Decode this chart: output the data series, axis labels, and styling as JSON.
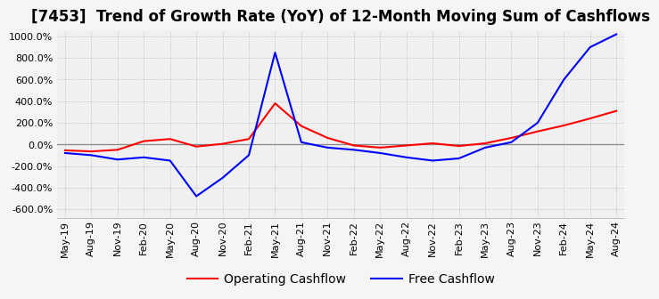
{
  "title": "[7453]  Trend of Growth Rate (YoY) of 12-Month Moving Sum of Cashflows",
  "ylim": [
    -680,
    1050
  ],
  "yticks": [
    -600,
    -400,
    -200,
    0,
    200,
    400,
    600,
    800,
    1000
  ],
  "ytick_labels": [
    "-600.0%",
    "-400.0%",
    "-200.0%",
    "0.0%",
    "200.0%",
    "400.0%",
    "600.0%",
    "800.0%",
    "1000.0%"
  ],
  "x_labels": [
    "May-19",
    "Aug-19",
    "Nov-19",
    "Feb-20",
    "May-20",
    "Aug-20",
    "Nov-20",
    "Feb-21",
    "May-21",
    "Aug-21",
    "Nov-21",
    "Feb-22",
    "May-22",
    "Aug-22",
    "Nov-22",
    "Feb-23",
    "May-23",
    "Aug-23",
    "Nov-23",
    "Feb-24",
    "May-24",
    "Aug-24"
  ],
  "operating_cashflow": [
    -55,
    -65,
    -50,
    30,
    50,
    -20,
    5,
    50,
    380,
    170,
    60,
    -10,
    -30,
    -10,
    10,
    -15,
    10,
    60,
    120,
    175,
    240,
    310
  ],
  "free_cashflow": [
    -80,
    -100,
    -140,
    -120,
    -150,
    -480,
    -310,
    -100,
    850,
    20,
    -30,
    -50,
    -80,
    -120,
    -150,
    -130,
    -30,
    20,
    200,
    600,
    900,
    1020
  ],
  "op_color": "#ff0000",
  "fc_color": "#0000ff",
  "bg_color": "#f5f5f5",
  "plot_bg_color": "#f0f0f0",
  "grid_color": "#aaaaaa",
  "zeroline_color": "#888888",
  "title_fontsize": 12,
  "tick_fontsize": 8,
  "legend_fontsize": 10
}
